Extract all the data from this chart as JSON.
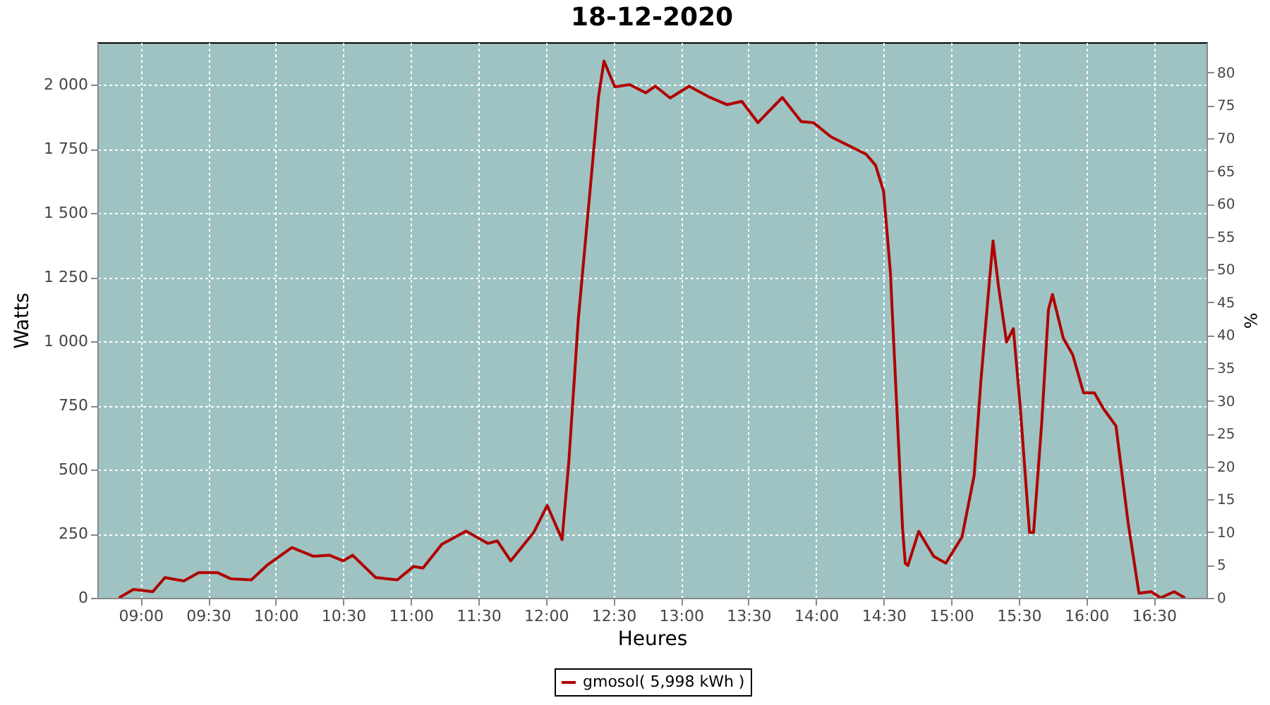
{
  "chart_data": {
    "type": "line",
    "title": "18-12-2020",
    "xlabel": "Heures",
    "ylabel": "Watts",
    "y2label": "%",
    "x": [
      8.84,
      8.947,
      9.09,
      9.18,
      9.32,
      9.43,
      9.57,
      9.67,
      9.82,
      9.94,
      10.12,
      10.28,
      10.4,
      10.5,
      10.57,
      10.74,
      10.9,
      11.02,
      11.09,
      11.23,
      11.41,
      11.57,
      11.64,
      11.74,
      11.91,
      12.01,
      12.12,
      12.17,
      12.24,
      12.32,
      12.39,
      12.43,
      12.51,
      12.62,
      12.74,
      12.81,
      12.92,
      13.06,
      13.2,
      13.34,
      13.45,
      13.57,
      13.75,
      13.89,
      13.98,
      14.11,
      14.27,
      14.37,
      14.44,
      14.5,
      14.55,
      14.6,
      14.64,
      14.66,
      14.68,
      14.76,
      14.87,
      14.96,
      15.08,
      15.17,
      15.22,
      15.28,
      15.31,
      15.35,
      15.41,
      15.46,
      15.51,
      15.58,
      15.61,
      15.67,
      15.72,
      15.75,
      15.83,
      15.9,
      15.98,
      16.06,
      16.13,
      16.22,
      16.31,
      16.39,
      16.48,
      16.55,
      16.65,
      16.73
    ],
    "series": [
      {
        "name": "gmosol( 5,998 kWh )",
        "color": "#b00000",
        "values": [
          0,
          33,
          24,
          79,
          66,
          98,
          98,
          74,
          70,
          129,
          196,
          162,
          166,
          144,
          166,
          79,
          70,
          122,
          116,
          209,
          260,
          212,
          222,
          144,
          255,
          360,
          227,
          532,
          1086,
          1547,
          1954,
          2092,
          1991,
          2000,
          1968,
          1994,
          1948,
          1994,
          1954,
          1922,
          1935,
          1852,
          1950,
          1856,
          1852,
          1797,
          1755,
          1729,
          1686,
          1584,
          1270,
          716,
          273,
          135,
          126,
          259,
          162,
          135,
          237,
          476,
          846,
          1215,
          1391,
          1215,
          997,
          1049,
          753,
          255,
          255,
          680,
          1123,
          1182,
          1012,
          947,
          799,
          799,
          735,
          670,
          292,
          18,
          24,
          0,
          24,
          0
        ]
      }
    ],
    "xlim": [
      8.68,
      16.89
    ],
    "xticks": [
      {
        "value": 9,
        "label": "09:00"
      },
      {
        "value": 9.5,
        "label": "09:30"
      },
      {
        "value": 10,
        "label": "10:00"
      },
      {
        "value": 10.5,
        "label": "10:30"
      },
      {
        "value": 11,
        "label": "11:00"
      },
      {
        "value": 11.5,
        "label": "11:30"
      },
      {
        "value": 12,
        "label": "12:00"
      },
      {
        "value": 12.5,
        "label": "12:30"
      },
      {
        "value": 13,
        "label": "13:00"
      },
      {
        "value": 13.5,
        "label": "13:30"
      },
      {
        "value": 14,
        "label": "14:00"
      },
      {
        "value": 14.5,
        "label": "14:30"
      },
      {
        "value": 15,
        "label": "15:00"
      },
      {
        "value": 15.5,
        "label": "15:30"
      },
      {
        "value": 16,
        "label": "16:00"
      },
      {
        "value": 16.5,
        "label": "16:30"
      }
    ],
    "ylim": [
      0,
      2165
    ],
    "yticks": [
      0,
      {
        "value": 250,
        "label": "250"
      },
      {
        "value": 500,
        "label": "500"
      },
      {
        "value": 750,
        "label": "750"
      },
      {
        "value": 1000,
        "label": "1 000"
      },
      {
        "value": 1250,
        "label": "1 250"
      },
      {
        "value": 1500,
        "label": "1 500"
      },
      {
        "value": 1750,
        "label": "1 750"
      },
      {
        "value": 2000,
        "label": "2 000"
      }
    ],
    "y2lim": [
      0,
      84.6
    ],
    "y2ticks": [
      0,
      5,
      10,
      15,
      20,
      25,
      30,
      35,
      40,
      45,
      50,
      55,
      60,
      65,
      70,
      75,
      80
    ],
    "grid": true,
    "legend": "bottom",
    "line_style": "solid"
  }
}
